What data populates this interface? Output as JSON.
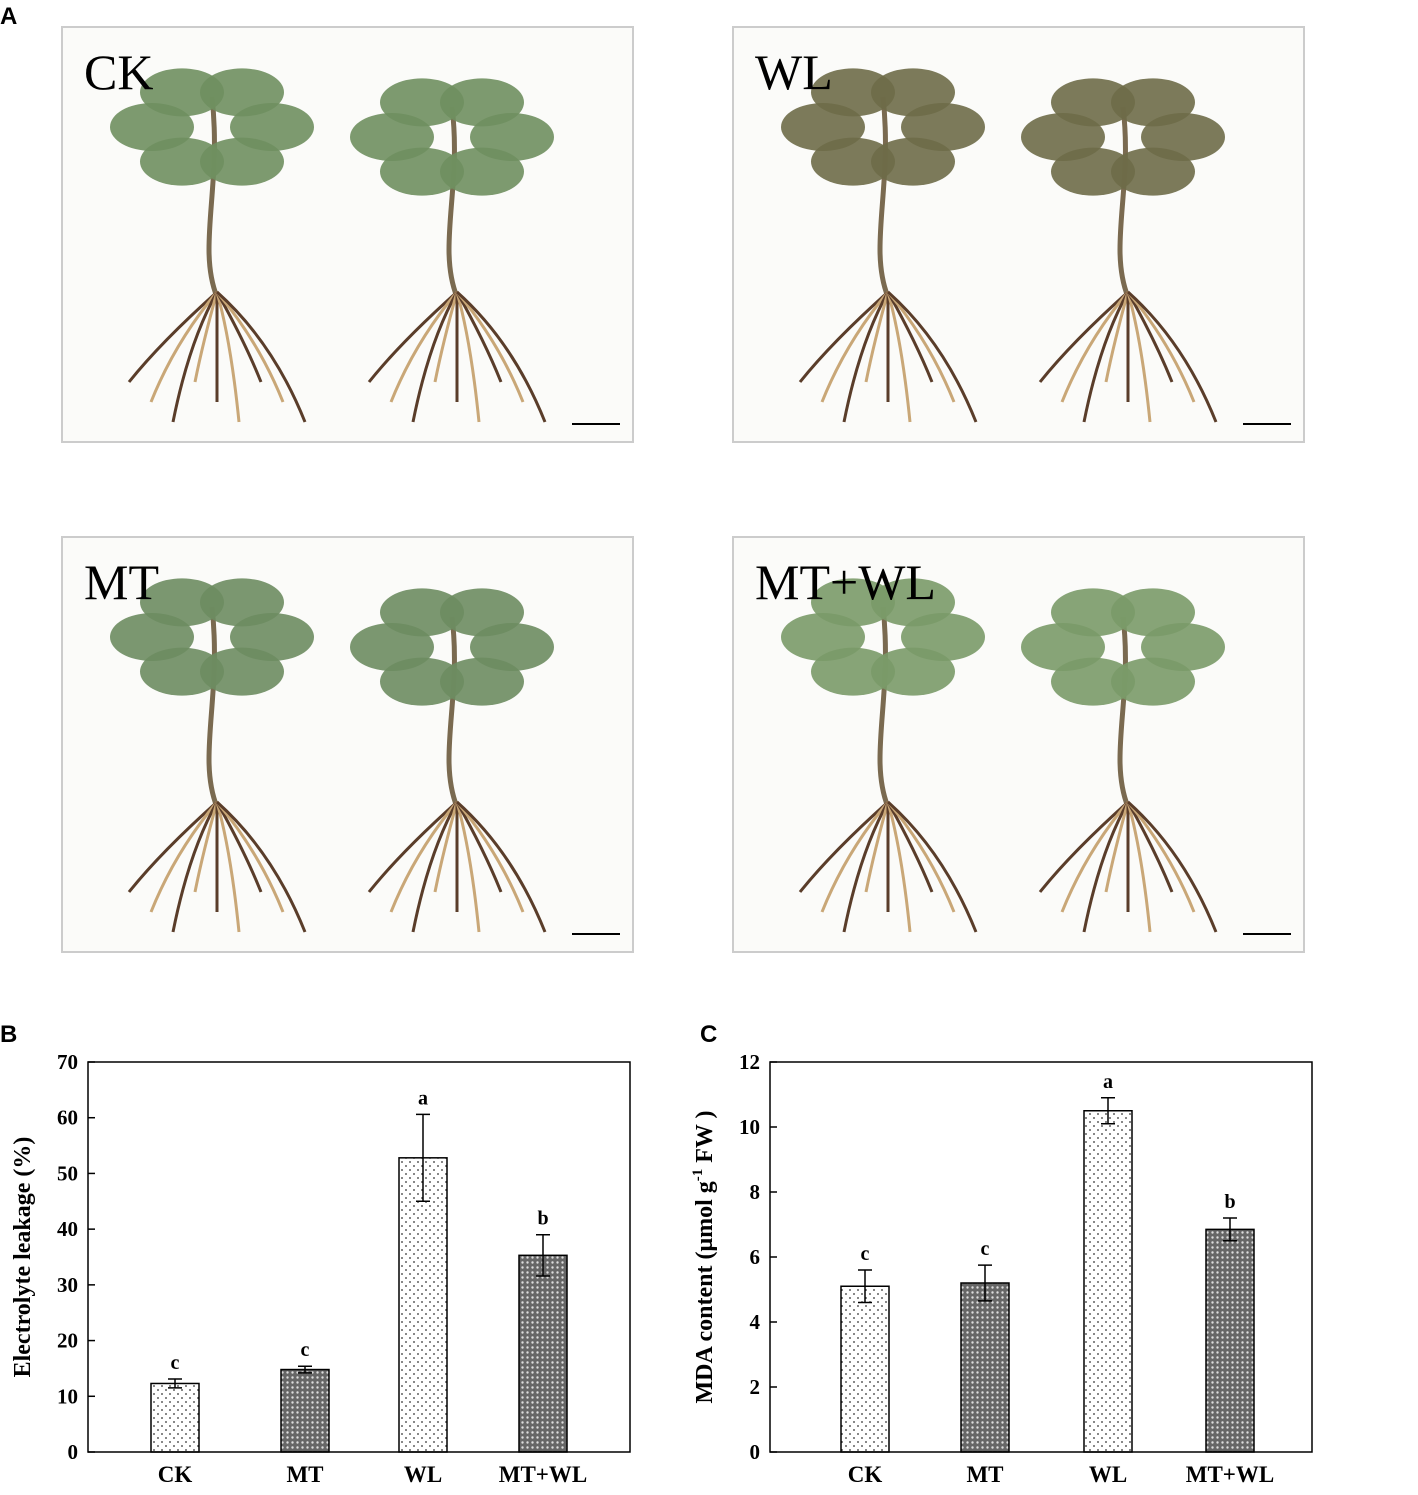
{
  "photos": {
    "panel": "A",
    "labels": [
      "CK",
      "WL",
      "MT",
      "MT+WL"
    ]
  },
  "chart_data": [
    {
      "type": "bar",
      "panel": "B",
      "ylabel": [
        "Electrolyte leakage (%)"
      ],
      "categories": [
        "CK",
        "MT",
        "WL",
        "MT+WL"
      ],
      "values": [
        12.3,
        14.8,
        52.8,
        35.3
      ],
      "errors": [
        0.8,
        0.6,
        7.8,
        3.7
      ],
      "annotations": [
        "c",
        "c",
        "a",
        "b"
      ],
      "pattern": [
        "sparse",
        "dense",
        "sparse",
        "dense"
      ],
      "ylim": [
        0,
        70
      ],
      "yticks": [
        0,
        10,
        20,
        30,
        40,
        50,
        60,
        70
      ]
    },
    {
      "type": "bar",
      "panel": "C",
      "ylabel": [
        "MDA content (μmol g",
        "-1",
        " FW )"
      ],
      "categories": [
        "CK",
        "MT",
        "WL",
        "MT+WL"
      ],
      "values": [
        5.1,
        5.2,
        10.5,
        6.85
      ],
      "errors": [
        0.5,
        0.55,
        0.4,
        0.35
      ],
      "annotations": [
        "c",
        "c",
        "a",
        "b"
      ],
      "pattern": [
        "sparse",
        "dense",
        "sparse",
        "dense"
      ],
      "ylim": [
        0,
        12
      ],
      "yticks": [
        0,
        2,
        4,
        6,
        8,
        10,
        12
      ]
    }
  ]
}
